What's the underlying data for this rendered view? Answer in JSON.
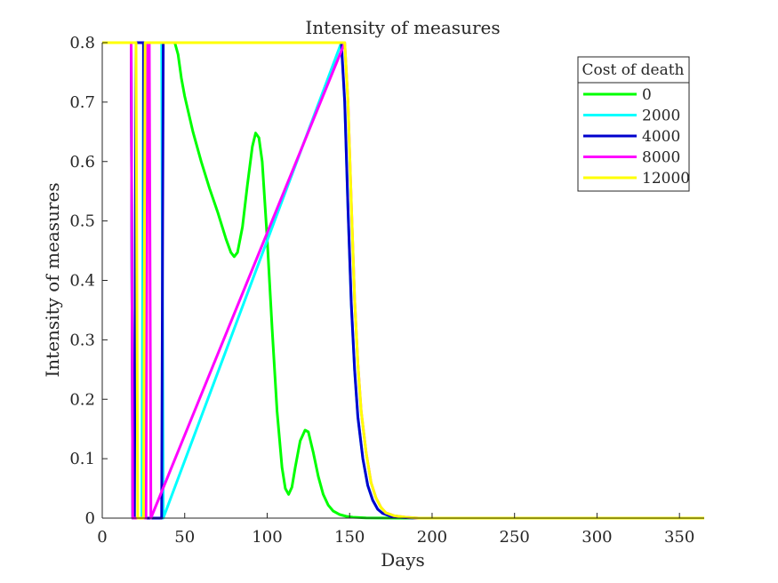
{
  "chart_data": {
    "type": "line",
    "title": "Intensity of measures",
    "xlabel": "Days",
    "ylabel": "Intensity of measures",
    "xlim": [
      0,
      365
    ],
    "ylim": [
      0,
      0.8
    ],
    "x_ticks": [
      "0",
      "50",
      "100",
      "150",
      "200",
      "250",
      "300",
      "350"
    ],
    "y_ticks": [
      "0",
      "0.1",
      "0.2",
      "0.3",
      "0.4",
      "0.5",
      "0.6",
      "0.7",
      "0.8"
    ],
    "grid": false,
    "legend": {
      "title": "Cost of death",
      "placement": "top-right"
    },
    "series": [
      {
        "name": "0",
        "color": "#00ff00",
        "x": [
          0,
          44,
          46,
          48,
          50,
          55,
          60,
          65,
          70,
          75,
          78,
          80,
          82,
          85,
          88,
          91,
          93,
          95,
          97,
          100,
          103,
          106,
          109,
          111,
          113,
          115,
          117,
          120,
          123,
          125,
          128,
          131,
          134,
          137,
          140,
          144,
          148,
          152,
          160,
          170,
          180,
          200,
          250,
          300,
          365
        ],
        "y": [
          0.8,
          0.8,
          0.78,
          0.74,
          0.71,
          0.65,
          0.6,
          0.555,
          0.515,
          0.47,
          0.447,
          0.44,
          0.447,
          0.49,
          0.56,
          0.625,
          0.648,
          0.64,
          0.6,
          0.47,
          0.32,
          0.18,
          0.085,
          0.05,
          0.04,
          0.052,
          0.085,
          0.13,
          0.148,
          0.145,
          0.11,
          0.07,
          0.04,
          0.022,
          0.012,
          0.006,
          0.003,
          0.0015,
          0.0005,
          0.0002,
          0.0,
          0.0,
          0.0,
          0.0,
          0.0
        ]
      },
      {
        "name": "2000",
        "color": "#00ffff",
        "x": [
          0,
          17.5,
          18.5,
          24,
          25,
          36,
          37,
          145,
          147,
          149,
          151,
          153,
          155,
          158,
          161,
          164,
          167,
          170,
          175,
          182,
          190,
          200,
          250,
          300,
          365
        ],
        "y": [
          0.8,
          0.8,
          0.0,
          0.0,
          0.8,
          0.8,
          0.0,
          0.8,
          0.7,
          0.52,
          0.36,
          0.25,
          0.17,
          0.1,
          0.055,
          0.03,
          0.015,
          0.008,
          0.003,
          0.001,
          0.0,
          0.0,
          0.0,
          0.0,
          0.0
        ]
      },
      {
        "name": "4000",
        "color": "#0000cd",
        "x": [
          0,
          17.5,
          18.5,
          19.5,
          20.5,
          25,
          26,
          27,
          28,
          35,
          36,
          37,
          145,
          147,
          149,
          151,
          153,
          155,
          158,
          161,
          164,
          167,
          170,
          175,
          182,
          190,
          200,
          250,
          300,
          365
        ],
        "y": [
          0.8,
          0.8,
          0.0,
          0.0,
          0.8,
          0.8,
          0.0,
          0.0,
          0.0,
          0.0,
          0.0,
          0.8,
          0.8,
          0.7,
          0.52,
          0.36,
          0.25,
          0.17,
          0.1,
          0.055,
          0.03,
          0.015,
          0.008,
          0.003,
          0.001,
          0.0,
          0.0,
          0.0,
          0.0,
          0.0
        ]
      },
      {
        "name": "8000",
        "color": "#ff00ff",
        "x": [
          0,
          17.5,
          18.5,
          26.5,
          27.5,
          28.5,
          29.5,
          147,
          149,
          151,
          153,
          155,
          157,
          160,
          163,
          166,
          169,
          172,
          177,
          184,
          192,
          200,
          250,
          300,
          365
        ],
        "y": [
          0.8,
          0.8,
          0.0,
          0.0,
          0.8,
          0.8,
          0.0,
          0.8,
          0.7,
          0.53,
          0.37,
          0.26,
          0.18,
          0.11,
          0.06,
          0.034,
          0.018,
          0.009,
          0.004,
          0.0015,
          0.0,
          0.0,
          0.0,
          0.0,
          0.0
        ]
      },
      {
        "name": "12000",
        "color": "#ffff00",
        "x": [
          0,
          20.5,
          21.5,
          25,
          26,
          147,
          149,
          151,
          153,
          155,
          157,
          160,
          163,
          166,
          169,
          172,
          177,
          184,
          192,
          200,
          250,
          300,
          365
        ],
        "y": [
          0.8,
          0.8,
          0.0,
          0.0,
          0.8,
          0.8,
          0.7,
          0.53,
          0.37,
          0.26,
          0.18,
          0.11,
          0.06,
          0.034,
          0.018,
          0.009,
          0.004,
          0.0015,
          0.0,
          0.0,
          0.0,
          0.0,
          0.0
        ]
      }
    ]
  }
}
